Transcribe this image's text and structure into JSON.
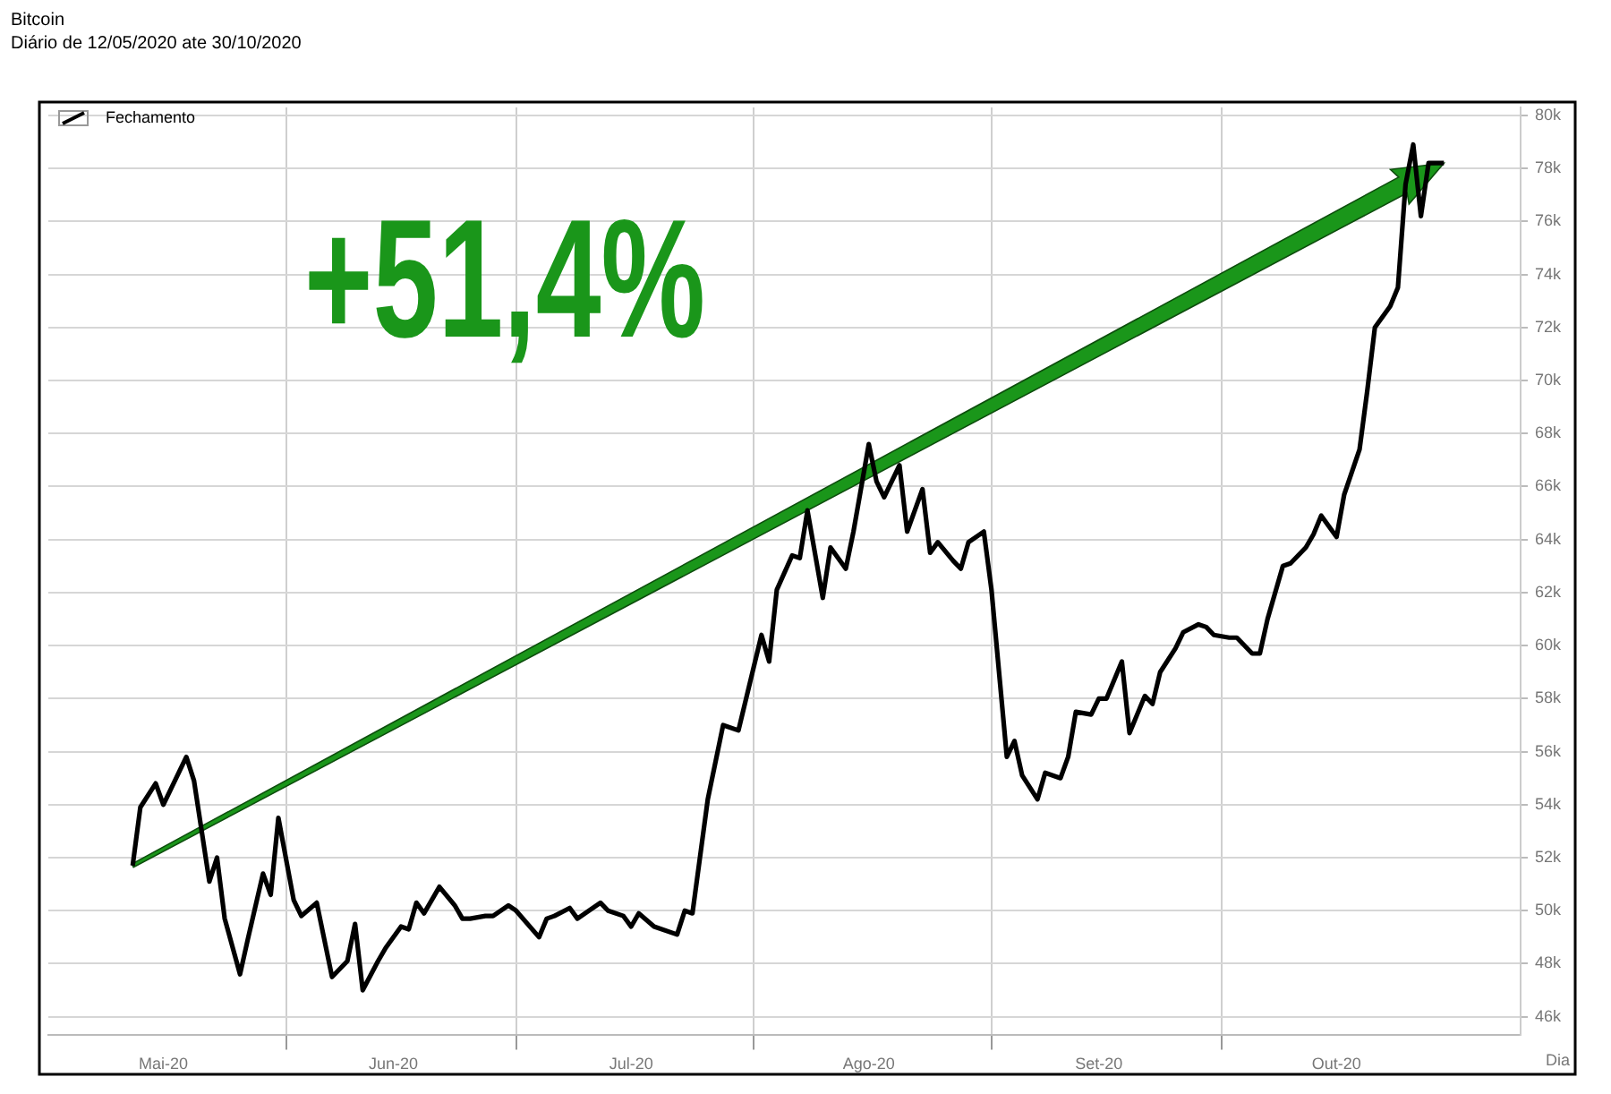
{
  "chart_data": {
    "type": "line",
    "title": "Bitcoin",
    "subtitle": "Diário de 12/05/2020 ate 30/10/2020",
    "xlabel": "Dia",
    "annotations": [
      "+51,4%"
    ],
    "legend": "top left",
    "grid": true,
    "marker": "none",
    "line_style": "solid",
    "xlim": [
      "2020-05-01",
      "2020-11-09"
    ],
    "xticks": [
      {
        "value": "2020-05-16",
        "label": "Mai-20"
      },
      {
        "value": "2020-06-01",
        "label": null
      },
      {
        "value": "2020-06-15",
        "label": "Jun-20"
      },
      {
        "value": "2020-07-01",
        "label": null
      },
      {
        "value": "2020-07-16",
        "label": "Jul-20"
      },
      {
        "value": "2020-08-01",
        "label": null
      },
      {
        "value": "2020-08-16",
        "label": "Ago-20"
      },
      {
        "value": "2020-09-01",
        "label": null
      },
      {
        "value": "2020-09-15",
        "label": "Set-20"
      },
      {
        "value": "2020-10-01",
        "label": null
      },
      {
        "value": "2020-10-16",
        "label": "Out-20"
      }
    ],
    "ylim": [
      45300,
      80300
    ],
    "yticks": [
      {
        "value": 46000,
        "label": "46k"
      },
      {
        "value": 48000,
        "label": "48k"
      },
      {
        "value": 50000,
        "label": "50k"
      },
      {
        "value": 52000,
        "label": "52k"
      },
      {
        "value": 54000,
        "label": "54k"
      },
      {
        "value": 56000,
        "label": "56k"
      },
      {
        "value": 58000,
        "label": "58k"
      },
      {
        "value": 60000,
        "label": "60k"
      },
      {
        "value": 62000,
        "label": "62k"
      },
      {
        "value": 64000,
        "label": "64k"
      },
      {
        "value": 66000,
        "label": "66k"
      },
      {
        "value": 68000,
        "label": "68k"
      },
      {
        "value": 70000,
        "label": "70k"
      },
      {
        "value": 72000,
        "label": "72k"
      },
      {
        "value": 74000,
        "label": "74k"
      },
      {
        "value": 76000,
        "label": "76k"
      },
      {
        "value": 78000,
        "label": "78k"
      },
      {
        "value": 80000,
        "label": "80k"
      }
    ],
    "x": [
      "2020-05-12",
      "2020-05-13",
      "2020-05-15",
      "2020-05-16",
      "2020-05-19",
      "2020-05-20",
      "2020-05-22",
      "2020-05-23",
      "2020-05-24",
      "2020-05-26",
      "2020-05-27",
      "2020-05-29",
      "2020-05-30",
      "2020-05-31",
      "2020-06-02",
      "2020-06-03",
      "2020-06-05",
      "2020-06-07",
      "2020-06-09",
      "2020-06-10",
      "2020-06-11",
      "2020-06-13",
      "2020-06-14",
      "2020-06-16",
      "2020-06-17",
      "2020-06-18",
      "2020-06-19",
      "2020-06-21",
      "2020-06-23",
      "2020-06-24",
      "2020-06-25",
      "2020-06-27",
      "2020-06-28",
      "2020-06-30",
      "2020-07-01",
      "2020-07-04",
      "2020-07-05",
      "2020-07-06",
      "2020-07-08",
      "2020-07-09",
      "2020-07-12",
      "2020-07-13",
      "2020-07-15",
      "2020-07-16",
      "2020-07-17",
      "2020-07-19",
      "2020-07-22",
      "2020-07-23",
      "2020-07-24",
      "2020-07-26",
      "2020-07-28",
      "2020-07-30",
      "2020-08-02",
      "2020-08-03",
      "2020-08-04",
      "2020-08-06",
      "2020-08-07",
      "2020-08-08",
      "2020-08-10",
      "2020-08-11",
      "2020-08-13",
      "2020-08-14",
      "2020-08-16",
      "2020-08-17",
      "2020-08-18",
      "2020-08-20",
      "2020-08-21",
      "2020-08-23",
      "2020-08-24",
      "2020-08-25",
      "2020-08-27",
      "2020-08-28",
      "2020-08-29",
      "2020-08-31",
      "2020-09-01",
      "2020-09-03",
      "2020-09-04",
      "2020-09-05",
      "2020-09-07",
      "2020-09-08",
      "2020-09-10",
      "2020-09-11",
      "2020-09-12",
      "2020-09-14",
      "2020-09-15",
      "2020-09-16",
      "2020-09-18",
      "2020-09-19",
      "2020-09-21",
      "2020-09-22",
      "2020-09-23",
      "2020-09-25",
      "2020-09-26",
      "2020-09-28",
      "2020-09-29",
      "2020-09-30",
      "2020-10-02",
      "2020-10-03",
      "2020-10-05",
      "2020-10-06",
      "2020-10-07",
      "2020-10-09",
      "2020-10-10",
      "2020-10-12",
      "2020-10-13",
      "2020-10-14",
      "2020-10-16",
      "2020-10-17",
      "2020-10-19",
      "2020-10-20",
      "2020-10-21",
      "2020-10-23",
      "2020-10-24",
      "2020-10-25",
      "2020-10-26",
      "2020-10-27",
      "2020-10-28",
      "2020-10-30"
    ],
    "series": [
      {
        "name": "Fechamento",
        "color": "#000000",
        "values": [
          51700,
          53900,
          54800,
          54000,
          55800,
          54900,
          51100,
          52000,
          49700,
          47600,
          48900,
          51400,
          50600,
          53500,
          50400,
          49800,
          50300,
          47500,
          48100,
          49500,
          47000,
          48100,
          48600,
          49400,
          49300,
          50300,
          49900,
          50900,
          50200,
          49700,
          49700,
          49800,
          49800,
          50200,
          50000,
          49000,
          49700,
          49800,
          50100,
          49700,
          50300,
          50000,
          49800,
          49400,
          49900,
          49400,
          49100,
          50000,
          49900,
          54200,
          57000,
          56800,
          60400,
          59400,
          62100,
          63400,
          63300,
          65100,
          61800,
          63700,
          62900,
          64300,
          67600,
          66200,
          65600,
          66800,
          64300,
          65900,
          63500,
          63900,
          63200,
          62900,
          63900,
          64300,
          62100,
          55800,
          56400,
          55100,
          54200,
          55200,
          55000,
          55800,
          57500,
          57400,
          58000,
          58000,
          59400,
          56700,
          58100,
          57800,
          59000,
          59900,
          60500,
          60800,
          60700,
          60400,
          60300,
          60300,
          59700,
          59700,
          61000,
          63000,
          63100,
          63700,
          64200,
          64900,
          64100,
          65700,
          67400,
          69600,
          72000,
          72800,
          73500,
          77400,
          78900,
          76200,
          78200,
          78200
        ]
      }
    ]
  }
}
